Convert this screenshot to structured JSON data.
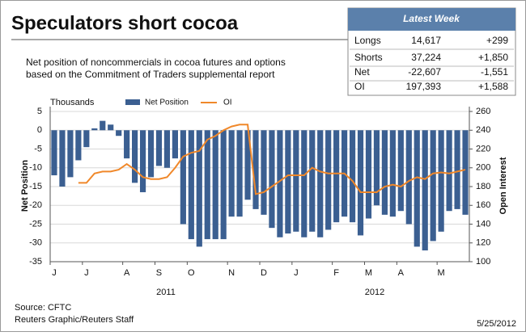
{
  "chart_data": {
    "type": "bar-line",
    "title": "Speculators short cocoa",
    "subtitle": [
      "Net position of noncommercials in cocoa futures and options",
      "based on the Commitment of Traders supplemental report"
    ],
    "unit_label": "Thousands",
    "ylabel": "Net Position",
    "y2label": "Open Interest",
    "categories": [
      "J",
      null,
      null,
      null,
      "J",
      null,
      null,
      null,
      null,
      "A",
      null,
      null,
      null,
      "S",
      null,
      null,
      null,
      "O",
      null,
      null,
      null,
      null,
      "N",
      null,
      null,
      null,
      "D",
      null,
      null,
      null,
      "J",
      null,
      null,
      null,
      null,
      "F",
      null,
      null,
      null,
      "M",
      null,
      null,
      null,
      "A",
      null,
      null,
      null,
      null,
      "M",
      null,
      null,
      null
    ],
    "years": [
      "2011",
      "2012"
    ],
    "series": [
      {
        "name": "Net Position",
        "color": "#3b5f91",
        "values": [
          -12,
          -15,
          -12.5,
          -8,
          -4.5,
          0.5,
          2.5,
          1.5,
          -1.5,
          -7.5,
          -14,
          -16.5,
          -12.5,
          -9.5,
          -10,
          -7.5,
          -25,
          -29,
          -31,
          -29,
          -29,
          -29,
          -23,
          -23,
          -18.5,
          -21,
          -22.5,
          -26,
          -28.5,
          -27.5,
          -27,
          -28.5,
          -27,
          -28.5,
          -26.5,
          -24.5,
          -23,
          -24.5,
          -28,
          -23.5,
          -20,
          -22.5,
          -23,
          -21.5,
          -25,
          -31,
          -32,
          -29.5,
          -27,
          -21.5,
          -21,
          -22.5
        ]
      },
      {
        "name": "OI",
        "color": "#f0882a",
        "axis": "y2",
        "values": [
          null,
          null,
          null,
          184,
          184,
          194,
          196,
          196,
          198,
          204,
          198,
          190,
          188,
          188,
          190,
          200,
          212,
          216,
          218,
          230,
          234,
          240,
          244,
          246,
          246,
          172,
          174,
          180,
          186,
          192,
          192,
          192,
          200,
          196,
          194,
          194,
          194,
          186,
          174,
          174,
          174,
          180,
          182,
          180,
          186,
          190,
          188,
          194,
          195,
          194,
          196,
          198
        ]
      }
    ],
    "ylim": [
      -35,
      5
    ],
    "yticks": [
      5,
      0,
      -5,
      -10,
      -15,
      -20,
      -25,
      -30,
      -35
    ],
    "y2lim": [
      100,
      260
    ],
    "y2ticks": [
      260,
      240,
      220,
      200,
      180,
      160,
      140,
      120,
      100
    ],
    "grid": true
  },
  "table": {
    "header": "Latest Week",
    "rows": [
      [
        "Longs",
        "14,617",
        "+299"
      ],
      [
        "Shorts",
        "37,224",
        "+1,850"
      ],
      [
        "Net",
        "-22,607",
        "-1,551"
      ],
      [
        "OI",
        "197,393",
        "+1,588"
      ]
    ]
  },
  "footer": {
    "source": "Source: CFTC",
    "credit": "Reuters Graphic/Reuters Staff",
    "date": "5/25/2012"
  }
}
